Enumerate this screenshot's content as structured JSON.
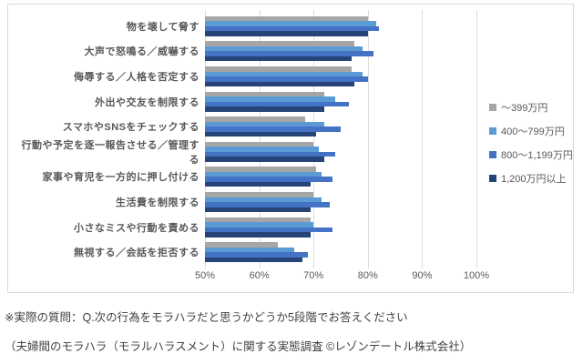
{
  "chart_data": {
    "type": "bar",
    "orientation": "horizontal",
    "title": "",
    "categories": [
      "物を壊して脅す",
      "大声で怒鳴る／威嚇する",
      "侮辱する／人格を否定する",
      "外出や交友を制限する",
      "スマホやSNSをチェックする",
      "行動や予定を逐一報告させる／管理する",
      "家事や育児を一方的に押し付ける",
      "生活費を制限する",
      "小さなミスや行動を責める",
      "無視する／会話を拒否する"
    ],
    "series": [
      {
        "name": "～399万円",
        "color": "#a6a6a6",
        "values": [
          80,
          77.5,
          77,
          72,
          68.5,
          70,
          70.5,
          70,
          69.5,
          63.5
        ]
      },
      {
        "name": "400～799万円",
        "color": "#5b9bd5",
        "values": [
          81.5,
          79,
          79,
          74,
          72,
          71,
          71.5,
          71.5,
          70,
          66.5
        ]
      },
      {
        "name": "800～1,199万円",
        "color": "#4472c4",
        "values": [
          82,
          81,
          80,
          76.5,
          75,
          74,
          73.5,
          73,
          73.5,
          69
        ]
      },
      {
        "name": "1,200万円以上",
        "color": "#264478",
        "values": [
          80,
          77,
          77.5,
          72,
          70.5,
          72,
          69.5,
          69.5,
          69.5,
          68
        ]
      }
    ],
    "x_axis": {
      "min": 50,
      "max": 100,
      "tick_values": [
        50,
        60,
        70,
        80,
        90,
        100
      ],
      "tick_labels": [
        "50%",
        "60%",
        "70%",
        "80%",
        "90%",
        "100%"
      ]
    },
    "grid": true,
    "legend_position": "right",
    "frame_border_color": "#d9d9d9"
  },
  "footnotes": {
    "question": "※実際の質問：Q.次の行為をモラハラだと思うかどうか5段階でお答えください",
    "source": "（夫婦間のモラハラ（モラルハラスメント）に関する実態調査 ©レゾンデートル株式会社）"
  }
}
